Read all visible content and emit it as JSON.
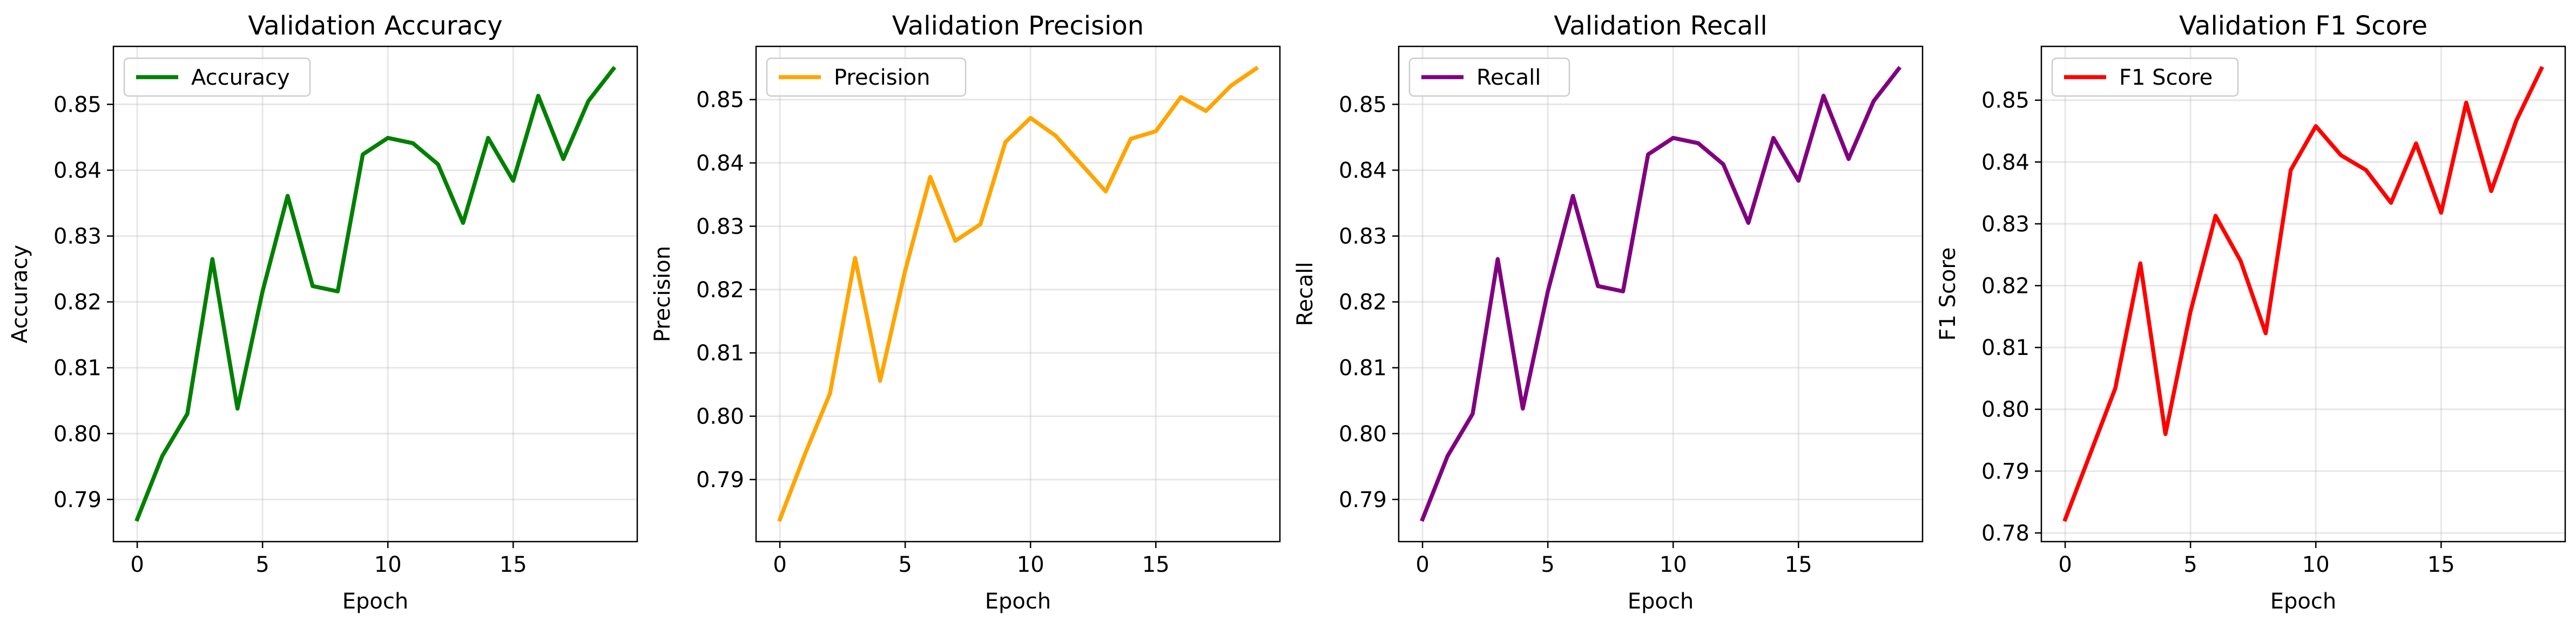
{
  "chart_data": [
    {
      "type": "line",
      "title": "Validation Accuracy",
      "xlabel": "Epoch",
      "ylabel": "Accuracy",
      "color": "#008000",
      "x": [
        0,
        1,
        2,
        3,
        4,
        5,
        6,
        7,
        8,
        9,
        10,
        11,
        12,
        13,
        14,
        15,
        16,
        17,
        18,
        19
      ],
      "series": [
        {
          "name": "Accuracy",
          "values": [
            0.787,
            0.7966,
            0.803,
            0.8265,
            0.8038,
            0.8216,
            0.8361,
            0.8224,
            0.8216,
            0.8424,
            0.8449,
            0.8441,
            0.8409,
            0.832,
            0.8449,
            0.8384,
            0.8513,
            0.8417,
            0.8505,
            0.8554
          ]
        }
      ],
      "xlim": [
        -0.95,
        19.95
      ],
      "ylim": [
        0.7836,
        0.8588
      ],
      "xticks": [
        0,
        5,
        10,
        15
      ],
      "yticks": [
        0.79,
        0.8,
        0.81,
        0.82,
        0.83,
        0.84,
        0.85
      ],
      "yticklabels": [
        "0.79",
        "0.80",
        "0.81",
        "0.82",
        "0.83",
        "0.84",
        "0.85"
      ],
      "grid": true,
      "legend": "upper left"
    },
    {
      "type": "line",
      "title": "Validation Precision",
      "xlabel": "Epoch",
      "ylabel": "Precision",
      "color": "#FFA500",
      "x": [
        0,
        1,
        2,
        3,
        4,
        5,
        6,
        7,
        8,
        9,
        10,
        11,
        12,
        13,
        14,
        15,
        16,
        17,
        18,
        19
      ],
      "series": [
        {
          "name": "Precision",
          "values": [
            0.7837,
            0.794,
            0.8036,
            0.825,
            0.8056,
            0.823,
            0.8378,
            0.8277,
            0.8303,
            0.8433,
            0.8471,
            0.8443,
            0.8399,
            0.8355,
            0.8438,
            0.845,
            0.8504,
            0.8482,
            0.8522,
            0.8549
          ]
        }
      ],
      "xlim": [
        -0.95,
        19.95
      ],
      "ylim": [
        0.7802,
        0.8584
      ],
      "xticks": [
        0,
        5,
        10,
        15
      ],
      "yticks": [
        0.79,
        0.8,
        0.81,
        0.82,
        0.83,
        0.84,
        0.85
      ],
      "yticklabels": [
        "0.79",
        "0.80",
        "0.81",
        "0.82",
        "0.83",
        "0.84",
        "0.85"
      ],
      "grid": true,
      "legend": "upper left"
    },
    {
      "type": "line",
      "title": "Validation Recall",
      "xlabel": "Epoch",
      "ylabel": "Recall",
      "color": "#800080",
      "x": [
        0,
        1,
        2,
        3,
        4,
        5,
        6,
        7,
        8,
        9,
        10,
        11,
        12,
        13,
        14,
        15,
        16,
        17,
        18,
        19
      ],
      "series": [
        {
          "name": "Recall",
          "values": [
            0.787,
            0.7966,
            0.803,
            0.8265,
            0.8038,
            0.8216,
            0.8361,
            0.8224,
            0.8216,
            0.8424,
            0.8449,
            0.8441,
            0.8409,
            0.832,
            0.8449,
            0.8384,
            0.8513,
            0.8417,
            0.8505,
            0.8554
          ]
        }
      ],
      "xlim": [
        -0.95,
        19.95
      ],
      "ylim": [
        0.7836,
        0.8588
      ],
      "xticks": [
        0,
        5,
        10,
        15
      ],
      "yticks": [
        0.79,
        0.8,
        0.81,
        0.82,
        0.83,
        0.84,
        0.85
      ],
      "yticklabels": [
        "0.79",
        "0.80",
        "0.81",
        "0.82",
        "0.83",
        "0.84",
        "0.85"
      ],
      "grid": true,
      "legend": "upper left"
    },
    {
      "type": "line",
      "title": "Validation F1 Score",
      "xlabel": "Epoch",
      "ylabel": "F1 Score",
      "color": "#FF0000",
      "x": [
        0,
        1,
        2,
        3,
        4,
        5,
        6,
        7,
        8,
        9,
        10,
        11,
        12,
        13,
        14,
        15,
        16,
        17,
        18,
        19
      ],
      "series": [
        {
          "name": "F1 Score",
          "values": [
            0.7822,
            0.7928,
            0.8034,
            0.8236,
            0.796,
            0.8158,
            0.8313,
            0.824,
            0.8123,
            0.8387,
            0.8458,
            0.8411,
            0.8387,
            0.8334,
            0.843,
            0.8318,
            0.8496,
            0.8353,
            0.8467,
            0.8551
          ]
        }
      ],
      "xlim": [
        -0.95,
        19.95
      ],
      "ylim": [
        0.7786,
        0.8587
      ],
      "xticks": [
        0,
        5,
        10,
        15
      ],
      "yticks": [
        0.78,
        0.79,
        0.8,
        0.81,
        0.82,
        0.83,
        0.84,
        0.85
      ],
      "yticklabels": [
        "0.78",
        "0.79",
        "0.80",
        "0.81",
        "0.82",
        "0.83",
        "0.84",
        "0.85"
      ],
      "grid": true,
      "legend": "upper left"
    }
  ]
}
